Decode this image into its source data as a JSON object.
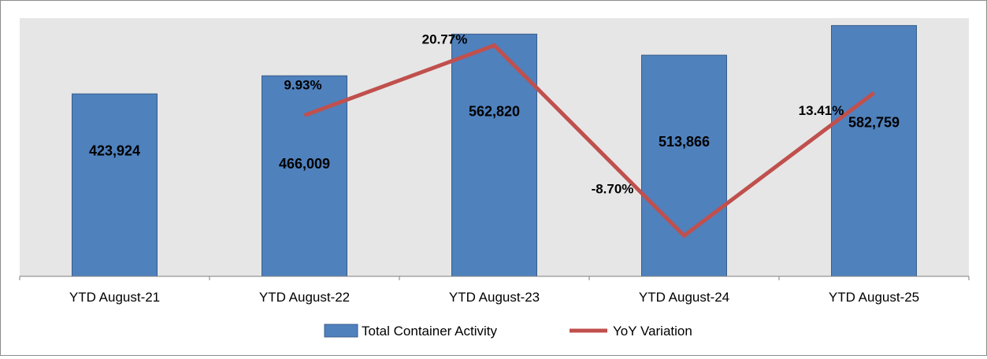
{
  "chart_data": {
    "type": "bar+line",
    "categories": [
      "YTD August-21",
      "YTD August-22",
      "YTD August-23",
      "YTD August-24",
      "YTD August-25"
    ],
    "series": [
      {
        "name": "Total Container Activity",
        "type": "bar",
        "axis": "primary",
        "values": [
          423924,
          466009,
          562820,
          513866,
          582759
        ],
        "labels": [
          "423,924",
          "466,009",
          "562,820",
          "513,866",
          "582,759"
        ]
      },
      {
        "name": "YoY Variation",
        "type": "line",
        "axis": "secondary",
        "values": [
          null,
          9.93,
          20.77,
          -8.7,
          13.41
        ],
        "labels": [
          "",
          "9.93%",
          "20.77%",
          "-8.70%",
          "13.41%"
        ]
      }
    ],
    "colors": {
      "bar": "#4f81bd",
      "bar_edge": "#385d8a",
      "line": "#c0504d",
      "plot_bg": "#e6e6e6"
    },
    "ylim_primary": [
      0,
      600000
    ],
    "ylim_secondary": [
      -15,
      25
    ],
    "legend": [
      "Total Container Activity",
      "YoY Variation"
    ],
    "legend_position": "bottom",
    "grid": false
  }
}
